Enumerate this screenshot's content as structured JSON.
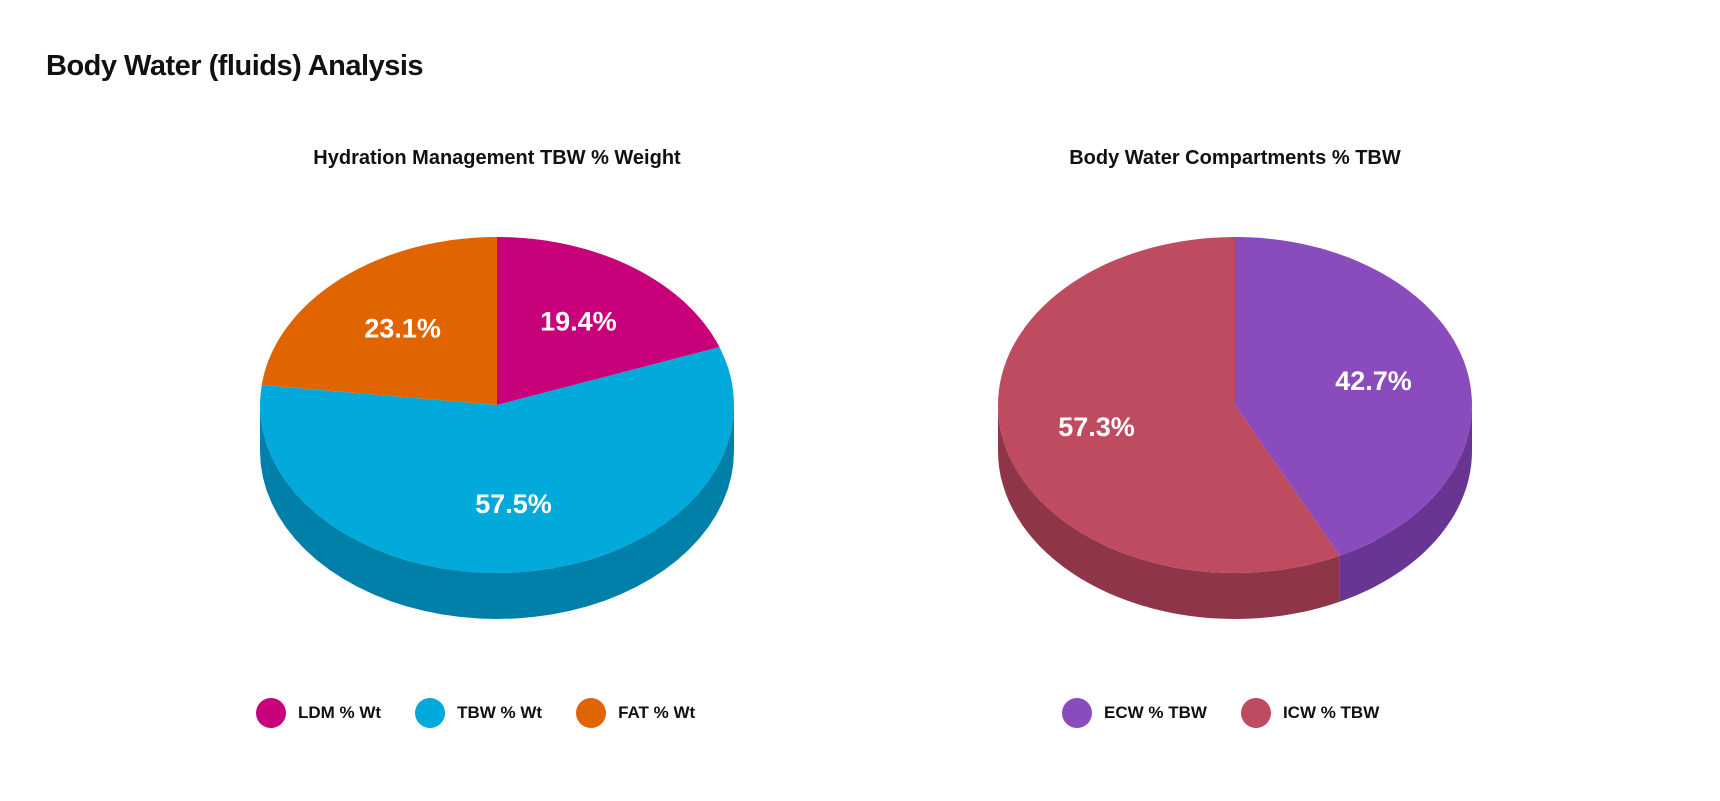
{
  "page_title": "Body Water (fluids) Analysis",
  "chart_data": [
    {
      "type": "pie",
      "title": "Hydration Management TBW % Weight",
      "legend_position": "bottom",
      "slices": [
        {
          "name": "LDM % Wt",
          "value": 19.4,
          "label": "19.4%",
          "color": "#c8007a",
          "side_color": "#8f0058"
        },
        {
          "name": "TBW % Wt",
          "value": 57.5,
          "label": "57.5%",
          "color": "#02aadb",
          "side_color": "#0080a8"
        },
        {
          "name": "FAT % Wt",
          "value": 23.1,
          "label": "23.1%",
          "color": "#e06400",
          "side_color": "#a84b00"
        }
      ]
    },
    {
      "type": "pie",
      "title": "Body Water Compartments % TBW",
      "legend_position": "bottom",
      "slices": [
        {
          "name": "ECW % TBW",
          "value": 42.7,
          "label": "42.7%",
          "color": "#8a4bbd",
          "side_color": "#683592"
        },
        {
          "name": "ICW % TBW",
          "value": 57.3,
          "label": "57.3%",
          "color": "#be4b5f",
          "side_color": "#8e3647"
        }
      ]
    }
  ]
}
